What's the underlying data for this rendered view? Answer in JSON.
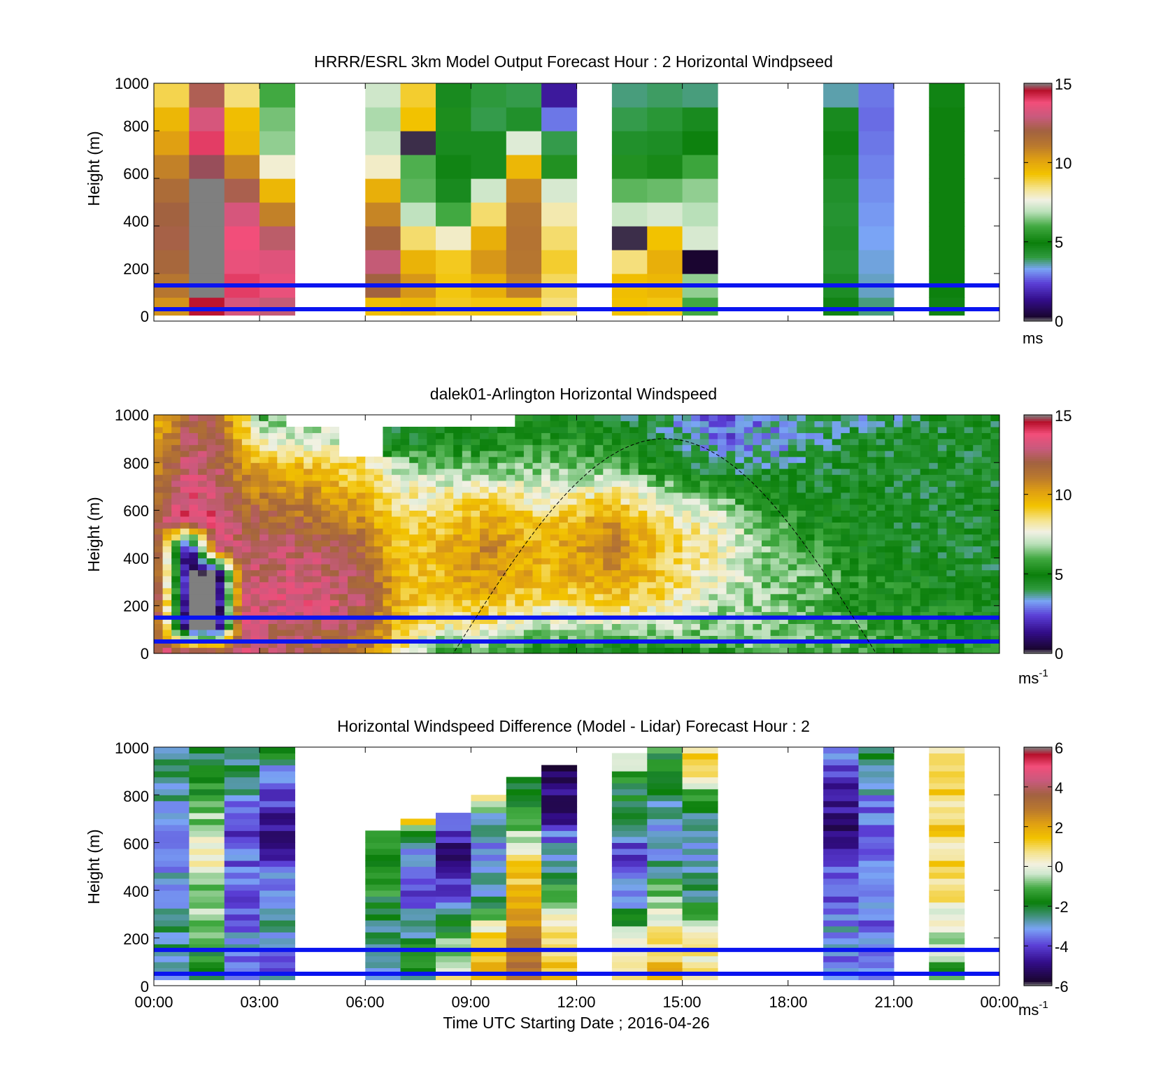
{
  "figure": {
    "xlabel": "Time UTC  Starting Date ; 2016-04-26",
    "xticks": [
      "00:00",
      "03:00",
      "06:00",
      "09:00",
      "12:00",
      "15:00",
      "18:00",
      "21:00",
      "00:00"
    ]
  },
  "chart_data": [
    {
      "type": "heatmap",
      "title": "HRRR/ESRL 3km Model Output   Forecast Hour : 2 Horizontal Windpseed",
      "ylabel": "Height (m)",
      "ylim": [
        0,
        1000
      ],
      "yticks": [
        "0",
        "200",
        "400",
        "600",
        "800",
        "1000"
      ],
      "colorbar": {
        "range": [
          0,
          15
        ],
        "ticks": [
          "0",
          "5",
          "10",
          "15"
        ],
        "unit": "ms",
        "unit_sup": ""
      },
      "reference_lines_m": [
        150,
        50
      ],
      "resolution": {
        "hours_per_column": 1,
        "meters_per_row": 100
      },
      "columns": [
        {
          "start_hour": 0,
          "values": [
            10.5,
            11.2,
            11.8,
            12.1,
            12.0,
            11.6,
            10.9,
            10.2,
            9.6,
            8.8
          ]
        },
        {
          "start_hour": 1,
          "values": [
            14.5,
            0.0,
            0.0,
            0.0,
            0.0,
            0.0,
            14.8,
            14.0,
            13.2,
            12.3
          ]
        },
        {
          "start_hour": 2,
          "values": [
            13.2,
            14.0,
            13.6,
            13.8,
            13.2,
            12.2,
            10.8,
            9.6,
            9.4,
            8.5
          ]
        },
        {
          "start_hour": 3,
          "values": [
            12.8,
            13.6,
            13.4,
            12.6,
            10.9,
            9.6,
            7.8,
            6.6,
            6.4,
            6.0
          ]
        },
        {
          "start_hour": 6,
          "values": [
            9.4,
            12.0,
            12.8,
            11.9,
            10.8,
            9.8,
            7.9,
            7.1,
            6.8,
            7.2
          ]
        },
        {
          "start_hour": 7,
          "values": [
            9.6,
            10.4,
            9.7,
            8.6,
            7.0,
            6.2,
            6.1,
            0.2,
            9.3,
            9.0
          ]
        },
        {
          "start_hour": 8,
          "values": [
            9.1,
            9.2,
            9.1,
            7.9,
            6.0,
            4.6,
            4.8,
            4.6,
            5.3,
            4.6
          ]
        },
        {
          "start_hour": 9,
          "values": [
            9.2,
            9.8,
            10.4,
            9.8,
            8.6,
            7.2,
            4.6,
            4.6,
            4.0,
            4.1
          ]
        },
        {
          "start_hour": 10,
          "values": [
            9.2,
            10.9,
            11.2,
            11.3,
            11.2,
            10.8,
            9.6,
            7.4,
            4.4,
            4.0
          ]
        },
        {
          "start_hour": 11,
          "values": [
            8.5,
            8.7,
            9.0,
            8.6,
            8.1,
            7.3,
            5.4,
            4.0,
            2.9,
            1.6
          ]
        },
        {
          "start_hour": 13,
          "values": [
            9.3,
            9.4,
            8.5,
            0.2,
            7.1,
            6.2,
            5.4,
            4.4,
            4.0,
            3.8
          ]
        },
        {
          "start_hour": 14,
          "values": [
            9.2,
            9.6,
            9.8,
            9.3,
            7.3,
            6.3,
            5.2,
            4.5,
            4.2,
            3.9
          ]
        },
        {
          "start_hour": 15,
          "values": [
            6.0,
            6.6,
            0.3,
            7.3,
            6.9,
            6.6,
            5.9,
            4.9,
            4.6,
            3.8
          ]
        },
        {
          "start_hour": 19,
          "values": [
            4.8,
            4.5,
            4.3,
            4.4,
            4.3,
            4.4,
            4.6,
            4.8,
            4.6,
            3.6
          ]
        },
        {
          "start_hour": 20,
          "values": [
            3.8,
            3.5,
            3.4,
            3.3,
            3.2,
            3.1,
            3.0,
            2.9,
            2.8,
            2.9
          ]
        },
        {
          "start_hour": 22,
          "values": [
            4.8,
            4.9,
            5.0,
            5.0,
            5.0,
            5.0,
            5.0,
            5.0,
            5.0,
            4.8
          ]
        }
      ]
    },
    {
      "type": "heatmap",
      "title": "dalek01-Arlington  Horizontal Windspeed",
      "ylabel": "Height (m)",
      "ylim": [
        0,
        1000
      ],
      "yticks": [
        "0",
        "200",
        "400",
        "600",
        "800",
        "1000"
      ],
      "colorbar": {
        "range": [
          0,
          15
        ],
        "ticks": [
          "0",
          "5",
          "10",
          "15"
        ],
        "unit": "ms",
        "unit_sup": "-1"
      },
      "reference_lines_m": [
        150,
        50
      ],
      "sun_elevation_curve": true,
      "resolution": {
        "hours_per_column": 0.25,
        "meters_per_row": 25
      },
      "profiles": [
        {
          "hour": 0.0,
          "values": [
            13.0,
            13.2,
            13.5,
            13.2,
            12.8,
            12.0,
            11.0,
            10.5,
            10.0,
            9.5
          ]
        },
        {
          "hour": 1.0,
          "values": [
            14.0,
            0.0,
            0.0,
            0.0,
            0.0,
            14.0,
            13.5,
            13.0,
            12.5,
            12.0
          ]
        },
        {
          "hour": 1.8,
          "values": [
            13.5,
            0.0,
            0.0,
            0.0,
            13.5,
            13.8,
            13.0,
            12.5,
            12.0,
            11.5
          ]
        },
        {
          "hour": 2.5,
          "values": [
            13.0,
            13.2,
            13.0,
            12.8,
            12.5,
            12.2,
            11.5,
            10.5,
            9.5,
            9.0
          ]
        },
        {
          "hour": 3.0,
          "values": [
            12.5,
            12.8,
            13.0,
            12.8,
            12.5,
            12.0,
            11.0,
            10.0,
            8.0,
            6.0
          ]
        },
        {
          "hour": 4.5,
          "values": [
            11.8,
            12.5,
            13.2,
            13.0,
            12.5,
            11.5,
            10.5,
            9.5,
            7.0,
            null
          ]
        },
        {
          "hour": 6.0,
          "values": [
            11.0,
            12.0,
            12.5,
            12.3,
            11.5,
            10.5,
            9.5,
            8.5,
            null,
            null
          ]
        },
        {
          "hour": 7.0,
          "values": [
            8.5,
            9.0,
            9.5,
            9.5,
            9.0,
            8.5,
            8.0,
            7.0,
            4.5,
            null
          ]
        },
        {
          "hour": 8.0,
          "values": [
            5.5,
            8.0,
            9.0,
            9.5,
            9.5,
            9.0,
            8.0,
            6.5,
            5.0,
            null
          ]
        },
        {
          "hour": 9.5,
          "values": [
            5.5,
            8.0,
            9.5,
            10.5,
            10.8,
            10.0,
            8.5,
            6.5,
            5.0,
            null
          ]
        },
        {
          "hour": 11.0,
          "values": [
            5.0,
            7.0,
            8.5,
            9.5,
            9.5,
            9.0,
            7.5,
            6.5,
            5.5,
            5.0
          ]
        },
        {
          "hour": 13.0,
          "values": [
            4.5,
            7.0,
            9.0,
            10.5,
            11.0,
            10.5,
            8.5,
            6.5,
            5.0,
            4.5
          ]
        },
        {
          "hour": 14.5,
          "values": [
            5.0,
            7.0,
            8.5,
            9.0,
            9.0,
            8.5,
            7.0,
            5.0,
            4.5,
            3.5
          ]
        },
        {
          "hour": 16.0,
          "values": [
            5.5,
            6.5,
            7.0,
            7.5,
            8.0,
            7.5,
            6.0,
            4.0,
            3.0,
            2.0
          ]
        },
        {
          "hour": 17.5,
          "values": [
            6.5,
            6.5,
            6.5,
            6.5,
            6.5,
            6.0,
            5.0,
            4.0,
            3.0,
            3.5
          ]
        },
        {
          "hour": 19.0,
          "values": [
            6.0,
            6.0,
            6.0,
            6.0,
            5.5,
            5.0,
            4.5,
            4.5,
            4.0,
            4.0
          ]
        },
        {
          "hour": 20.0,
          "values": [
            6.0,
            6.0,
            5.5,
            5.5,
            5.0,
            5.0,
            4.5,
            4.5,
            4.5,
            3.5
          ]
        },
        {
          "hour": 21.5,
          "values": [
            5.5,
            5.5,
            5.0,
            5.0,
            4.5,
            4.5,
            4.5,
            4.5,
            4.5,
            4.0
          ]
        },
        {
          "hour": 23.0,
          "values": [
            5.5,
            5.0,
            5.0,
            4.5,
            4.5,
            4.5,
            4.5,
            4.5,
            4.5,
            4.5
          ]
        },
        {
          "hour": 24.0,
          "values": [
            5.5,
            5.0,
            4.5,
            4.5,
            4.5,
            4.5,
            4.5,
            4.5,
            4.5,
            4.5
          ]
        }
      ]
    },
    {
      "type": "heatmap",
      "title": "Horizontal Windspeed Difference (Model - Lidar) Forecast Hour : 2",
      "ylabel": "Height (m)",
      "ylim": [
        0,
        1000
      ],
      "yticks": [
        "0",
        "200",
        "400",
        "600",
        "800",
        "1000"
      ],
      "colorbar": {
        "range": [
          -6,
          6
        ],
        "ticks": [
          "-6",
          "-4",
          "-2",
          "0",
          "2",
          "4",
          "6"
        ],
        "unit": "ms",
        "unit_sup": "-1"
      },
      "reference_lines_m": [
        150,
        50
      ],
      "resolution": {
        "hours_per_column": 1,
        "meters_per_row": 25
      },
      "columns": [
        {
          "start_hour": 0,
          "top_m": 1000,
          "anchors": [
            -2.8,
            -2.6,
            -2.5,
            -2.7,
            -3.0,
            -3.2,
            -3.0,
            -2.8,
            -2.6,
            -3.0
          ]
        },
        {
          "start_hour": 1,
          "top_m": 1000,
          "anchors": [
            -2.0,
            -1.5,
            -1.0,
            -0.8,
            -0.2,
            0.5,
            -0.5,
            -1.2,
            -2.0,
            -2.5
          ]
        },
        {
          "start_hour": 2,
          "top_m": 1000,
          "anchors": [
            -3.6,
            -3.2,
            -3.4,
            -3.6,
            -3.8,
            -3.5,
            -4.2,
            -3.0,
            -2.5,
            -2.0
          ]
        },
        {
          "start_hour": 3,
          "top_m": 1000,
          "anchors": [
            -3.2,
            -3.8,
            -2.5,
            -2.8,
            -3.5,
            -4.4,
            -4.6,
            -4.2,
            -3.2,
            -1.5
          ]
        },
        {
          "start_hour": 6,
          "top_m": 650,
          "anchors": [
            -3.5,
            -3.0,
            -2.5,
            -2.0,
            -1.2,
            -1.5,
            -2.0
          ]
        },
        {
          "start_hour": 7,
          "top_m": 700,
          "anchors": [
            -2.2,
            -1.5,
            -2.5,
            -3.2,
            -3.8,
            -3.5,
            -2.5,
            1.2
          ]
        },
        {
          "start_hour": 8,
          "top_m": 725,
          "anchors": [
            0.2,
            -0.2,
            -1.5,
            -3.0,
            -4.2,
            -5.0,
            -4.5,
            -3.2
          ]
        },
        {
          "start_hour": 9,
          "top_m": 800,
          "anchors": [
            1.2,
            1.8,
            0.8,
            -1.5,
            -3.0,
            -3.2,
            -3.0,
            -2.8,
            1.2
          ]
        },
        {
          "start_hour": 10,
          "top_m": 875,
          "anchors": [
            3.0,
            3.2,
            2.5,
            1.5,
            1.2,
            0.6,
            -1.0,
            -1.5,
            -2.0
          ]
        },
        {
          "start_hour": 11,
          "top_m": 925,
          "anchors": [
            1.2,
            1.0,
            0.8,
            -0.3,
            -1.5,
            -2.8,
            -3.5,
            -5.0,
            -5.2,
            -5.4
          ]
        },
        {
          "start_hour": 13,
          "top_m": 975,
          "anchors": [
            1.0,
            0.5,
            -1.0,
            -2.8,
            -3.5,
            -4.0,
            -3.0,
            -2.2,
            -1.5,
            0.5
          ]
        },
        {
          "start_hour": 14,
          "top_m": 1000,
          "anchors": [
            1.5,
            1.2,
            0.5,
            -0.5,
            -2.0,
            -3.0,
            -3.2,
            -2.5,
            -2.0,
            -1.5
          ]
        },
        {
          "start_hour": 15,
          "top_m": 1000,
          "anchors": [
            0.8,
            0.5,
            -0.5,
            -2.0,
            -2.5,
            -3.0,
            -2.5,
            -1.5,
            0.5,
            1.0
          ]
        },
        {
          "start_hour": 19,
          "top_m": 1000,
          "anchors": [
            -3.5,
            -3.4,
            -3.2,
            -3.5,
            -3.8,
            -4.5,
            -5.0,
            -4.8,
            -4.2,
            -3.2
          ]
        },
        {
          "start_hour": 20,
          "top_m": 1000,
          "anchors": [
            -3.6,
            -3.6,
            -3.4,
            -3.5,
            -3.6,
            -3.8,
            -3.6,
            -3.2,
            -2.8,
            -2.0
          ]
        },
        {
          "start_hour": 22,
          "top_m": 1000,
          "anchors": [
            -1.2,
            -0.8,
            0.0,
            0.6,
            0.8,
            0.9,
            1.0,
            1.0,
            1.1,
            1.0
          ]
        }
      ]
    }
  ]
}
